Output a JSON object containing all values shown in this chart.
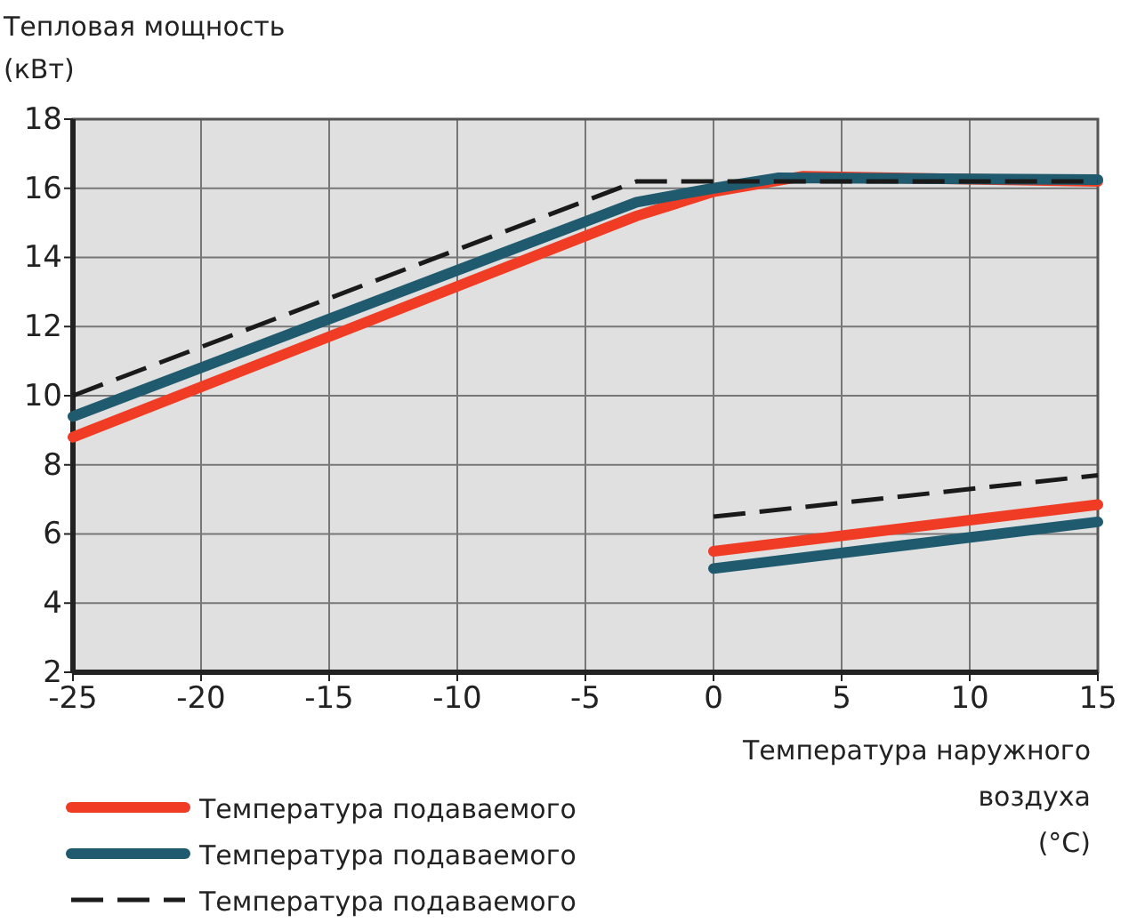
{
  "chart_data": {
    "type": "line",
    "ylabel": "Тепловая мощность (кВт)",
    "xlabel": "Температура наружного воздуха (°C)",
    "xlim": [
      -25,
      15
    ],
    "xticks": [
      -25,
      -20,
      -15,
      -10,
      -5,
      0,
      5,
      10,
      15
    ],
    "ylim": [
      2,
      18
    ],
    "yticks": [
      2,
      4,
      6,
      8,
      10,
      12,
      14,
      16,
      18
    ],
    "grid": true,
    "legend": "bottom",
    "marker": "none",
    "series": [
      {
        "name": "Температура подаваемого",
        "color": "#f03c24",
        "line_style": "solid",
        "x": [
          -25,
          -3,
          0,
          3.5,
          15
        ],
        "values": [
          8.8,
          15.2,
          15.9,
          16.35,
          16.2
        ]
      },
      {
        "name": "Температура подаваемого",
        "color": "#1f5a6e",
        "line_style": "solid",
        "x": [
          -25,
          -3,
          0,
          2.5,
          15
        ],
        "values": [
          9.4,
          15.6,
          16.0,
          16.3,
          16.25
        ]
      },
      {
        "name": "Температура подаваемого",
        "color": "#1a1a1a",
        "line_style": "dashed",
        "x": [
          -25,
          -3,
          15
        ],
        "values": [
          10,
          16.2,
          16.2
        ]
      },
      {
        "color": "#f03c24",
        "line_style": "solid",
        "x": [
          0,
          15
        ],
        "values": [
          5.5,
          6.85
        ]
      },
      {
        "color": "#1f5a6e",
        "line_style": "solid",
        "x": [
          0,
          15
        ],
        "values": [
          5.0,
          6.35
        ]
      },
      {
        "color": "#1a1a1a",
        "line_style": "dashed",
        "x": [
          0,
          15
        ],
        "values": [
          6.5,
          7.7
        ]
      }
    ]
  }
}
